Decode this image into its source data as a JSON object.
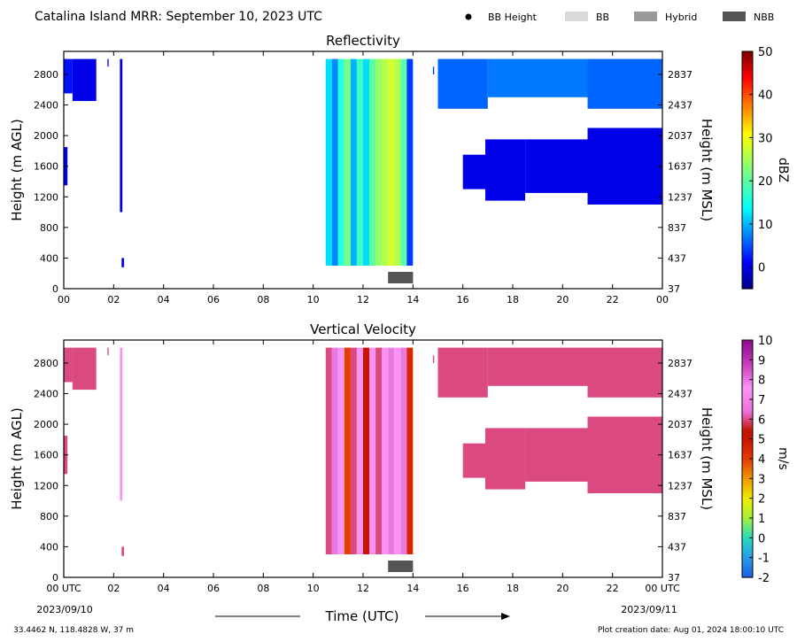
{
  "header": {
    "title": "Catalina Island MRR:  September 10, 2023 UTC",
    "legend": [
      {
        "label": "BB Height",
        "symbol": "dot",
        "color": "#000000"
      },
      {
        "label": "BB",
        "symbol": "bar",
        "color": "#d9d9d9"
      },
      {
        "label": "Hybrid",
        "symbol": "bar",
        "color": "#999999"
      },
      {
        "label": "NBB",
        "symbol": "bar",
        "color": "#555555"
      }
    ]
  },
  "footer": {
    "xlabel": "Time (UTC)",
    "location": "33.4462 N, 118.4828 W, 37 m",
    "creation": "Plot creation date: Aug 01, 2024 18:00:10 UTC",
    "start_date": "2023/09/10",
    "end_date": "2023/09/11"
  },
  "chart_data": [
    {
      "type": "heatmap",
      "title": "Reflectivity",
      "ylabel": "Height (m AGL)",
      "ylabel_right": "Height (m MSL)",
      "colorbar_label": "dBZ",
      "x_ticks": [
        "00",
        "02",
        "04",
        "06",
        "08",
        "10",
        "12",
        "14",
        "16",
        "18",
        "20",
        "22",
        "00"
      ],
      "xlim": [
        0,
        24
      ],
      "y_ticks_left": [
        "0",
        "400",
        "800",
        "1200",
        "1600",
        "2000",
        "2400",
        "2800"
      ],
      "y_ticks_right": [
        "37",
        "437",
        "837",
        "1237",
        "1637",
        "2037",
        "2437",
        "2837"
      ],
      "ylim": [
        0,
        3100
      ],
      "colorbar_ticks": [
        "0",
        "10",
        "20",
        "30",
        "40",
        "50"
      ],
      "colorbar_range": [
        -5,
        50
      ],
      "cells": [
        {
          "t0": 0.0,
          "t1": 0.35,
          "h0": 2550,
          "h1": 3000,
          "value": 2
        },
        {
          "t0": 0.35,
          "t1": 1.3,
          "h0": 2450,
          "h1": 3000,
          "value": 0
        },
        {
          "t0": 1.75,
          "t1": 1.8,
          "h0": 2900,
          "h1": 3000,
          "value": 2
        },
        {
          "t0": 0.0,
          "t1": 0.15,
          "h0": 1350,
          "h1": 1850,
          "value": 0
        },
        {
          "t0": 2.25,
          "t1": 2.35,
          "h0": 1000,
          "h1": 3000,
          "value": -1
        },
        {
          "t0": 2.32,
          "t1": 2.42,
          "h0": 280,
          "h1": 400,
          "value": 0
        },
        {
          "t0": 10.5,
          "t1": 10.75,
          "h0": 300,
          "h1": 3000,
          "value": 12
        },
        {
          "t0": 10.75,
          "t1": 11.0,
          "h0": 300,
          "h1": 3000,
          "value": 8
        },
        {
          "t0": 11.0,
          "t1": 11.25,
          "h0": 300,
          "h1": 3000,
          "value": 16
        },
        {
          "t0": 11.25,
          "t1": 11.5,
          "h0": 300,
          "h1": 3000,
          "value": 22
        },
        {
          "t0": 11.5,
          "t1": 11.75,
          "h0": 300,
          "h1": 3000,
          "value": 10
        },
        {
          "t0": 11.75,
          "t1": 12.0,
          "h0": 300,
          "h1": 3000,
          "value": 18
        },
        {
          "t0": 12.0,
          "t1": 12.25,
          "h0": 300,
          "h1": 3000,
          "value": 12
        },
        {
          "t0": 12.25,
          "t1": 12.5,
          "h0": 300,
          "h1": 3000,
          "value": 20
        },
        {
          "t0": 12.5,
          "t1": 12.75,
          "h0": 300,
          "h1": 3000,
          "value": 24
        },
        {
          "t0": 12.75,
          "t1": 13.0,
          "h0": 300,
          "h1": 3000,
          "value": 26
        },
        {
          "t0": 13.0,
          "t1": 13.25,
          "h0": 300,
          "h1": 3000,
          "value": 28
        },
        {
          "t0": 13.25,
          "t1": 13.5,
          "h0": 300,
          "h1": 3000,
          "value": 26
        },
        {
          "t0": 13.5,
          "t1": 13.75,
          "h0": 300,
          "h1": 3000,
          "value": 20
        },
        {
          "t0": 13.75,
          "t1": 14.0,
          "h0": 300,
          "h1": 3000,
          "value": 4
        },
        {
          "t0": 14.8,
          "t1": 14.85,
          "h0": 2800,
          "h1": 2900,
          "value": 4
        },
        {
          "t0": 15.0,
          "t1": 17.0,
          "h0": 2350,
          "h1": 3000,
          "value": 6
        },
        {
          "t0": 17.0,
          "t1": 21.0,
          "h0": 2500,
          "h1": 3000,
          "value": 7
        },
        {
          "t0": 21.0,
          "t1": 24.0,
          "h0": 2350,
          "h1": 3000,
          "value": 6
        },
        {
          "t0": 16.0,
          "t1": 16.9,
          "h0": 1300,
          "h1": 1750,
          "value": 0
        },
        {
          "t0": 16.9,
          "t1": 18.5,
          "h0": 1150,
          "h1": 1950,
          "value": 0
        },
        {
          "t0": 18.5,
          "t1": 21.0,
          "h0": 1250,
          "h1": 1950,
          "value": 0
        },
        {
          "t0": 21.0,
          "t1": 24.0,
          "h0": 1100,
          "h1": 2100,
          "value": 0
        }
      ],
      "bright_band": [
        {
          "t0": 13.0,
          "t1": 14.0,
          "type": "NBB"
        }
      ]
    },
    {
      "type": "heatmap",
      "title": "Vertical Velocity",
      "ylabel": "Height (m AGL)",
      "ylabel_right": "Height (m MSL)",
      "colorbar_label": "m/s",
      "x_ticks": [
        "00 UTC",
        "02",
        "04",
        "06",
        "08",
        "10",
        "12",
        "14",
        "16",
        "18",
        "20",
        "22",
        "00 UTC"
      ],
      "xlim": [
        0,
        24
      ],
      "y_ticks_left": [
        "0",
        "400",
        "800",
        "1200",
        "1600",
        "2000",
        "2400",
        "2800"
      ],
      "y_ticks_right": [
        "37",
        "437",
        "837",
        "1237",
        "1637",
        "2037",
        "2437",
        "2837"
      ],
      "ylim": [
        0,
        3100
      ],
      "colorbar_ticks": [
        "-2",
        "-1",
        "0",
        "1",
        "2",
        "3",
        "4",
        "5",
        "6",
        "7",
        "8",
        "9",
        "10"
      ],
      "colorbar_range": [
        -2,
        10
      ],
      "cells": [
        {
          "t0": 0.0,
          "t1": 0.35,
          "h0": 2550,
          "h1": 3000,
          "value": 6
        },
        {
          "t0": 0.35,
          "t1": 1.3,
          "h0": 2450,
          "h1": 3000,
          "value": 6
        },
        {
          "t0": 1.75,
          "t1": 1.8,
          "h0": 2900,
          "h1": 3000,
          "value": 6
        },
        {
          "t0": 0.0,
          "t1": 0.15,
          "h0": 1350,
          "h1": 1850,
          "value": 6
        },
        {
          "t0": 2.25,
          "t1": 2.35,
          "h0": 1000,
          "h1": 3000,
          "value": 7.5
        },
        {
          "t0": 2.32,
          "t1": 2.42,
          "h0": 280,
          "h1": 400,
          "value": 6
        },
        {
          "t0": 10.5,
          "t1": 10.75,
          "h0": 300,
          "h1": 3000,
          "value": 6
        },
        {
          "t0": 10.75,
          "t1": 11.0,
          "h0": 300,
          "h1": 3000,
          "value": 8
        },
        {
          "t0": 11.0,
          "t1": 11.25,
          "h0": 300,
          "h1": 3000,
          "value": 7.5
        },
        {
          "t0": 11.25,
          "t1": 11.5,
          "h0": 300,
          "h1": 3000,
          "value": 4
        },
        {
          "t0": 11.5,
          "t1": 11.75,
          "h0": 300,
          "h1": 3000,
          "value": 6
        },
        {
          "t0": 11.75,
          "t1": 12.0,
          "h0": 300,
          "h1": 3000,
          "value": 7.5
        },
        {
          "t0": 12.0,
          "t1": 12.25,
          "h0": 300,
          "h1": 3000,
          "value": 5
        },
        {
          "t0": 12.25,
          "t1": 12.5,
          "h0": 300,
          "h1": 3000,
          "value": 7.5
        },
        {
          "t0": 12.5,
          "t1": 12.75,
          "h0": 300,
          "h1": 3000,
          "value": 6
        },
        {
          "t0": 12.75,
          "t1": 13.0,
          "h0": 300,
          "h1": 3000,
          "value": 7.5
        },
        {
          "t0": 13.0,
          "t1": 13.25,
          "h0": 300,
          "h1": 3000,
          "value": 8
        },
        {
          "t0": 13.25,
          "t1": 13.5,
          "h0": 300,
          "h1": 3000,
          "value": 7.5
        },
        {
          "t0": 13.5,
          "t1": 13.75,
          "h0": 300,
          "h1": 3000,
          "value": 8
        },
        {
          "t0": 13.75,
          "t1": 14.0,
          "h0": 300,
          "h1": 3000,
          "value": 4.5
        },
        {
          "t0": 14.8,
          "t1": 14.85,
          "h0": 2800,
          "h1": 2900,
          "value": 6
        },
        {
          "t0": 15.0,
          "t1": 17.0,
          "h0": 2350,
          "h1": 3000,
          "value": 6
        },
        {
          "t0": 17.0,
          "t1": 21.0,
          "h0": 2500,
          "h1": 3000,
          "value": 6
        },
        {
          "t0": 21.0,
          "t1": 24.0,
          "h0": 2350,
          "h1": 3000,
          "value": 6
        },
        {
          "t0": 16.0,
          "t1": 16.9,
          "h0": 1300,
          "h1": 1750,
          "value": 6
        },
        {
          "t0": 16.9,
          "t1": 18.5,
          "h0": 1150,
          "h1": 1950,
          "value": 6
        },
        {
          "t0": 18.5,
          "t1": 21.0,
          "h0": 1250,
          "h1": 1950,
          "value": 6
        },
        {
          "t0": 21.0,
          "t1": 24.0,
          "h0": 1100,
          "h1": 2100,
          "value": 6
        }
      ],
      "bright_band": [
        {
          "t0": 13.0,
          "t1": 14.0,
          "type": "NBB"
        }
      ]
    }
  ]
}
